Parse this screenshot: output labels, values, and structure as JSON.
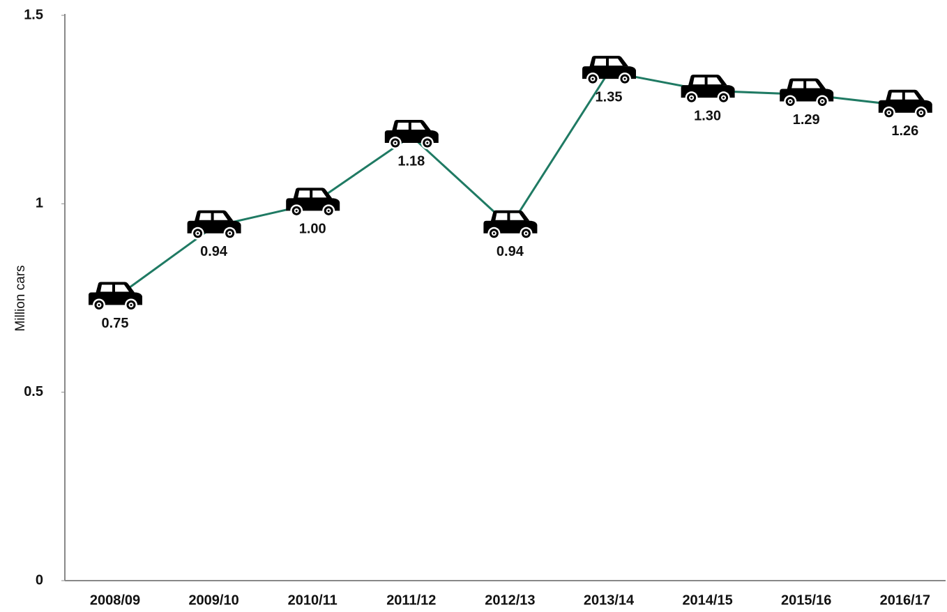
{
  "chart_data": {
    "type": "line",
    "y_label": "Million cars",
    "categories": [
      "2008/09",
      "2009/10",
      "2010/11",
      "2011/12",
      "2012/13",
      "2013/14",
      "2014/15",
      "2015/16",
      "2016/17"
    ],
    "values": [
      0.75,
      0.94,
      1.0,
      1.18,
      0.94,
      1.35,
      1.3,
      1.29,
      1.26
    ],
    "value_labels": [
      "0.75",
      "0.94",
      "1.00",
      "1.18",
      "0.94",
      "1.35",
      "1.30",
      "1.29",
      "1.26"
    ],
    "color": "#1f7a63",
    "marker_color": "#000000",
    "ylim": [
      0,
      1.5
    ],
    "yticks": [
      0,
      0.5,
      1,
      1.5
    ],
    "grid": false
  }
}
